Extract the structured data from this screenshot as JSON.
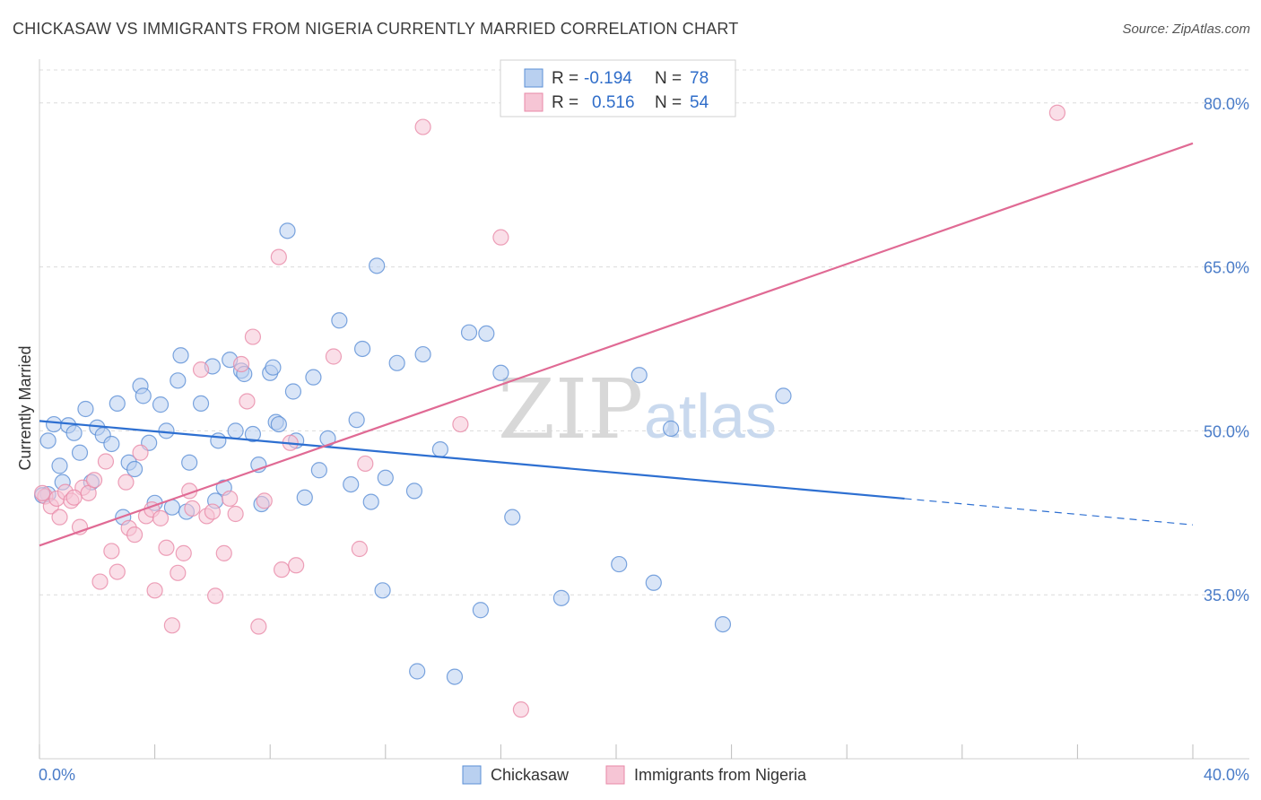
{
  "title": "CHICKASAW VS IMMIGRANTS FROM NIGERIA CURRENTLY MARRIED CORRELATION CHART",
  "source": "Source: ZipAtlas.com",
  "watermark": {
    "zip": "ZIP",
    "atlas": "atlas"
  },
  "colors": {
    "blue": "#5b8fd6",
    "blue_fill": "#b9d0f0",
    "blue_line": "#2d6fd1",
    "pink": "#e889a8",
    "pink_fill": "#f6c5d5",
    "pink_line": "#e06a94",
    "axis_text": "#4a7cc8",
    "grid": "#dcdcdc"
  },
  "legend": {
    "rows": [
      {
        "r_label": "R =",
        "r_value": "-0.194",
        "n_label": "N =",
        "n_value": "78"
      },
      {
        "r_label": "R =",
        "r_value": "0.516",
        "n_label": "N =",
        "n_value": "54"
      }
    ]
  },
  "bottom_legend": [
    "Chickasaw",
    "Immigrants from Nigeria"
  ],
  "chart_data": {
    "type": "scatter",
    "title": "CHICKASAW VS IMMIGRANTS FROM NIGERIA CURRENTLY MARRIED CORRELATION CHART",
    "xlabel": "",
    "ylabel": "Currently Married",
    "xlim": [
      0,
      40
    ],
    "ylim": [
      20,
      84
    ],
    "x_tick_labels": [
      "0.0%",
      "40.0%"
    ],
    "y_ticks": [
      35,
      50,
      65,
      80
    ],
    "y_tick_labels": [
      "35.0%",
      "50.0%",
      "65.0%",
      "80.0%"
    ],
    "grid": true,
    "legend_position": "top-center",
    "series": [
      {
        "name": "Chickasaw",
        "r": -0.194,
        "n": 78,
        "trend": {
          "x": [
            0,
            30
          ],
          "y": [
            50.9,
            43.8
          ]
        },
        "trend_dashed": {
          "x": [
            30,
            40
          ],
          "y": [
            43.8,
            41.4
          ]
        },
        "points": [
          [
            0.3,
            44.2
          ],
          [
            0.3,
            49.1
          ],
          [
            0.5,
            50.6
          ],
          [
            0.7,
            46.8
          ],
          [
            0.8,
            45.3
          ],
          [
            1.0,
            50.5
          ],
          [
            1.2,
            49.8
          ],
          [
            1.4,
            48.0
          ],
          [
            1.6,
            52.0
          ],
          [
            1.8,
            45.3
          ],
          [
            2.0,
            50.3
          ],
          [
            2.2,
            49.6
          ],
          [
            2.5,
            48.8
          ],
          [
            2.7,
            52.5
          ],
          [
            2.9,
            42.1
          ],
          [
            3.1,
            47.1
          ],
          [
            3.3,
            46.5
          ],
          [
            3.5,
            54.1
          ],
          [
            3.6,
            53.2
          ],
          [
            3.8,
            48.9
          ],
          [
            4.0,
            43.4
          ],
          [
            4.2,
            52.4
          ],
          [
            4.4,
            50.0
          ],
          [
            4.6,
            43.0
          ],
          [
            4.8,
            54.6
          ],
          [
            4.9,
            56.9
          ],
          [
            5.1,
            42.6
          ],
          [
            5.2,
            47.1
          ],
          [
            5.6,
            52.5
          ],
          [
            6.0,
            55.9
          ],
          [
            6.1,
            43.6
          ],
          [
            6.2,
            49.1
          ],
          [
            6.4,
            44.8
          ],
          [
            6.6,
            56.5
          ],
          [
            6.8,
            50.0
          ],
          [
            7.0,
            55.5
          ],
          [
            7.1,
            55.2
          ],
          [
            7.4,
            49.7
          ],
          [
            7.6,
            46.9
          ],
          [
            7.7,
            43.3
          ],
          [
            8.0,
            55.3
          ],
          [
            8.1,
            55.8
          ],
          [
            8.2,
            50.8
          ],
          [
            8.3,
            50.6
          ],
          [
            8.6,
            68.3
          ],
          [
            8.8,
            53.6
          ],
          [
            8.9,
            49.1
          ],
          [
            9.2,
            43.9
          ],
          [
            9.5,
            54.9
          ],
          [
            9.7,
            46.4
          ],
          [
            10.0,
            49.3
          ],
          [
            10.4,
            60.1
          ],
          [
            10.8,
            45.1
          ],
          [
            11.0,
            51.0
          ],
          [
            11.2,
            57.5
          ],
          [
            11.5,
            43.5
          ],
          [
            11.7,
            65.1
          ],
          [
            11.9,
            35.4
          ],
          [
            12.0,
            45.7
          ],
          [
            12.4,
            56.2
          ],
          [
            13.0,
            44.5
          ],
          [
            13.1,
            28.0
          ],
          [
            13.3,
            57.0
          ],
          [
            13.9,
            48.3
          ],
          [
            14.4,
            27.5
          ],
          [
            14.9,
            59.0
          ],
          [
            15.3,
            33.6
          ],
          [
            15.5,
            58.9
          ],
          [
            16.0,
            55.3
          ],
          [
            16.4,
            42.1
          ],
          [
            18.1,
            34.7
          ],
          [
            20.1,
            37.8
          ],
          [
            20.8,
            55.1
          ],
          [
            21.3,
            36.1
          ],
          [
            21.9,
            50.2
          ],
          [
            23.7,
            32.3
          ],
          [
            25.8,
            53.2
          ],
          [
            0.1,
            44.1
          ]
        ]
      },
      {
        "name": "Immigrants from Nigeria",
        "r": 0.516,
        "n": 54,
        "trend": {
          "x": [
            0,
            40
          ],
          "y": [
            39.5,
            76.3
          ]
        },
        "points": [
          [
            0.2,
            44.0
          ],
          [
            0.4,
            43.1
          ],
          [
            0.6,
            43.8
          ],
          [
            0.7,
            42.1
          ],
          [
            0.9,
            44.4
          ],
          [
            1.1,
            43.6
          ],
          [
            1.4,
            41.2
          ],
          [
            1.5,
            44.8
          ],
          [
            1.7,
            44.3
          ],
          [
            1.9,
            45.5
          ],
          [
            2.1,
            36.2
          ],
          [
            2.3,
            47.2
          ],
          [
            2.5,
            39.0
          ],
          [
            2.7,
            37.1
          ],
          [
            3.0,
            45.3
          ],
          [
            3.1,
            41.1
          ],
          [
            3.3,
            40.5
          ],
          [
            3.5,
            48.0
          ],
          [
            3.7,
            42.2
          ],
          [
            3.9,
            42.8
          ],
          [
            4.0,
            35.4
          ],
          [
            4.2,
            42.0
          ],
          [
            4.4,
            39.3
          ],
          [
            4.6,
            32.2
          ],
          [
            4.8,
            37.0
          ],
          [
            5.0,
            38.8
          ],
          [
            5.2,
            44.5
          ],
          [
            5.3,
            42.9
          ],
          [
            5.6,
            55.6
          ],
          [
            5.8,
            42.2
          ],
          [
            6.0,
            42.6
          ],
          [
            6.1,
            34.9
          ],
          [
            6.4,
            38.8
          ],
          [
            6.6,
            43.8
          ],
          [
            6.8,
            42.4
          ],
          [
            7.0,
            56.1
          ],
          [
            7.2,
            52.7
          ],
          [
            7.4,
            58.6
          ],
          [
            7.6,
            32.1
          ],
          [
            7.8,
            43.6
          ],
          [
            8.3,
            65.9
          ],
          [
            8.4,
            37.3
          ],
          [
            8.7,
            48.9
          ],
          [
            8.9,
            37.7
          ],
          [
            10.2,
            56.8
          ],
          [
            11.1,
            39.2
          ],
          [
            11.3,
            47.0
          ],
          [
            13.3,
            77.8
          ],
          [
            14.6,
            50.6
          ],
          [
            16.0,
            67.7
          ],
          [
            16.7,
            24.5
          ],
          [
            35.3,
            79.1
          ],
          [
            0.1,
            44.3
          ],
          [
            1.2,
            43.9
          ]
        ]
      }
    ]
  }
}
